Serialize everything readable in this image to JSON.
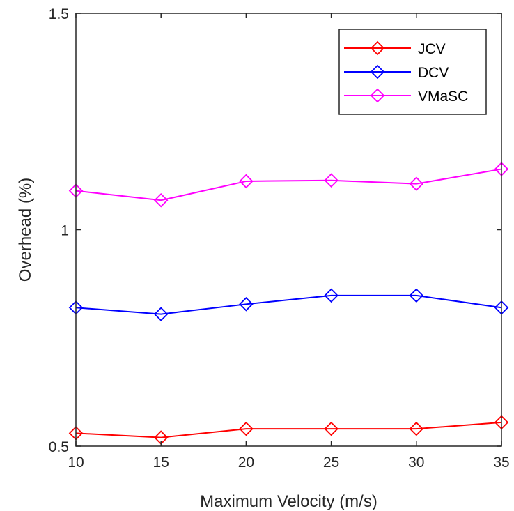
{
  "chart_data": {
    "type": "line",
    "title": "",
    "xlabel": "Maximum Velocity (m/s)",
    "ylabel": "Overhead (%)",
    "x": [
      10,
      15,
      20,
      25,
      30,
      35
    ],
    "xlim": [
      10,
      35
    ],
    "ylim": [
      0.5,
      1.5
    ],
    "xticks": [
      10,
      15,
      20,
      25,
      30,
      35
    ],
    "xtick_labels": [
      "10",
      "15",
      "20",
      "25",
      "30",
      "35"
    ],
    "yticks": [
      0.5,
      1,
      1.5
    ],
    "ytick_labels": [
      "0.5",
      "1",
      "1.5"
    ],
    "grid": false,
    "legend_position": "top-right",
    "marker": "diamond",
    "series": [
      {
        "name": "JCV",
        "color": "#ff0000",
        "values": [
          0.53,
          0.52,
          0.54,
          0.54,
          0.54,
          0.555
        ]
      },
      {
        "name": "DCV",
        "color": "#0000ff",
        "values": [
          0.82,
          0.805,
          0.828,
          0.848,
          0.848,
          0.82
        ]
      },
      {
        "name": "VMaSC",
        "color": "#ff00ff",
        "values": [
          1.09,
          1.068,
          1.112,
          1.114,
          1.106,
          1.14
        ]
      }
    ]
  }
}
